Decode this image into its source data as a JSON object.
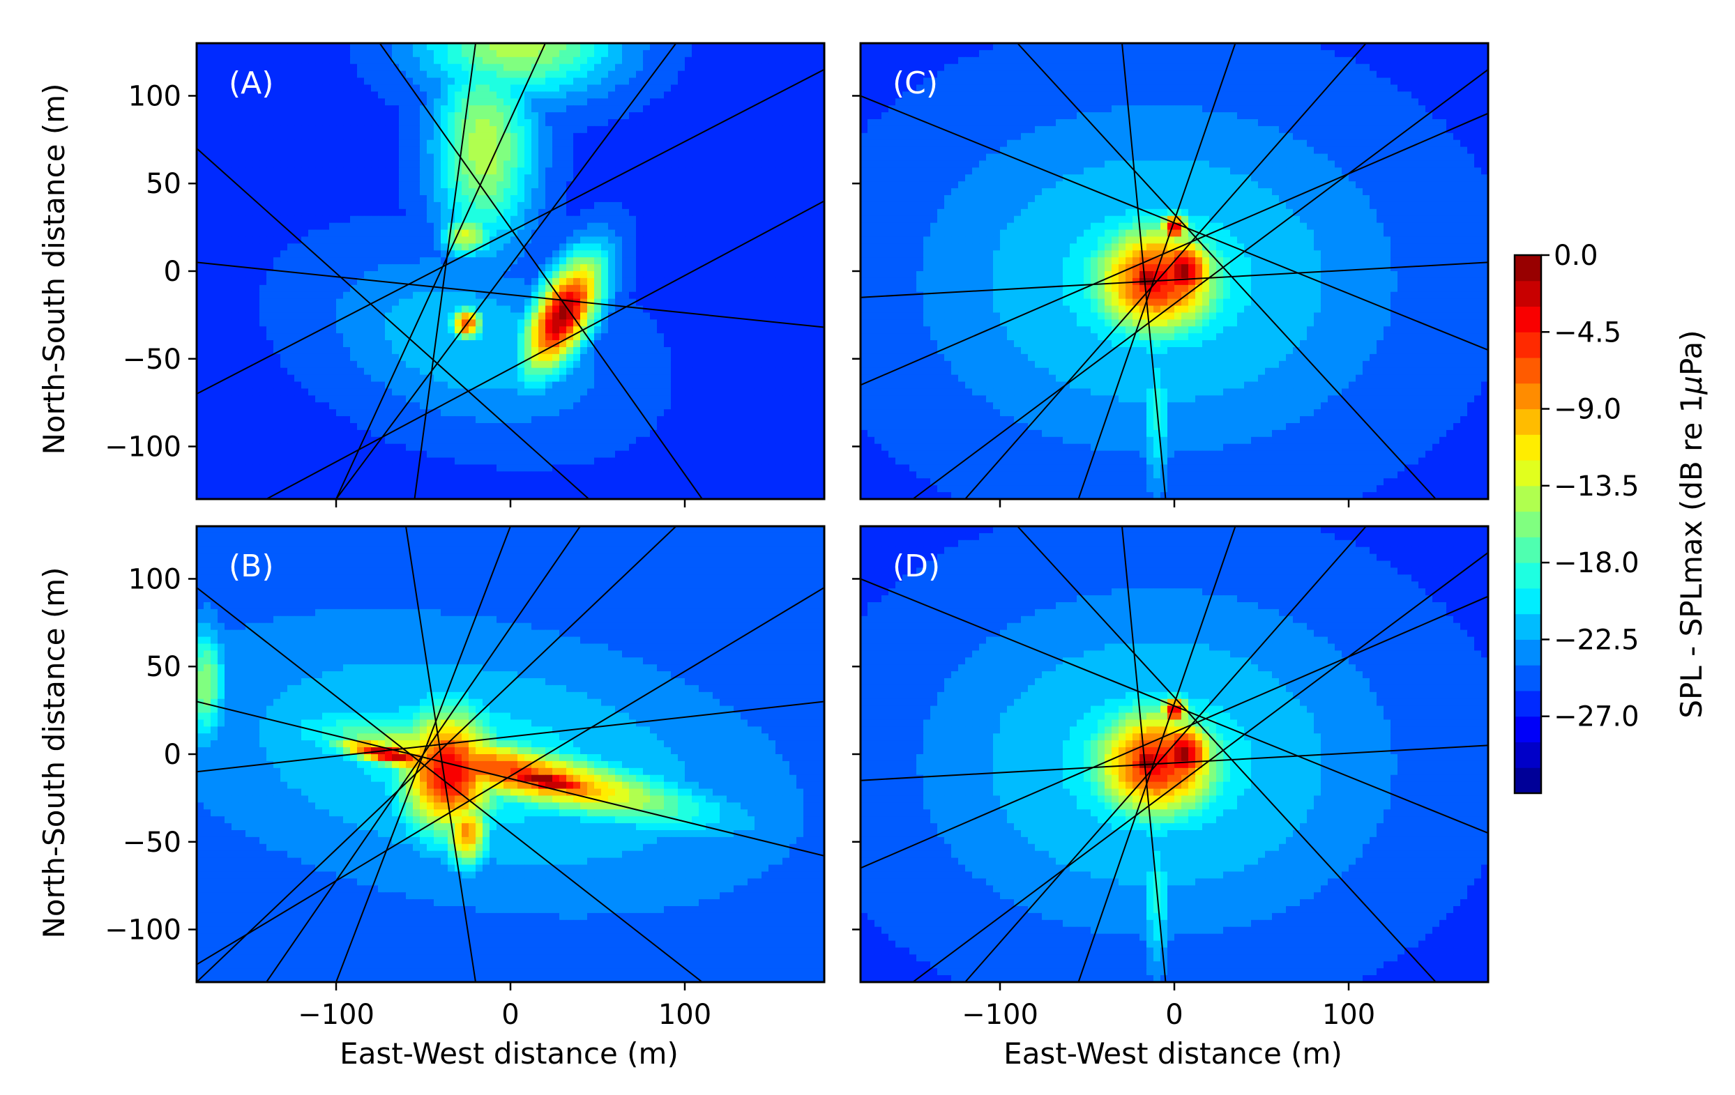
{
  "chart_data": {
    "type": "heatmap",
    "xlabel": "East-West distance (m)",
    "ylabel": "North-South distance (m)",
    "xlim": [
      -180,
      180
    ],
    "ylim": [
      -130,
      130
    ],
    "x_ticks": [
      -100,
      0,
      100
    ],
    "x_tick_labels": [
      "−100",
      "0",
      "100"
    ],
    "y_ticks": [
      100,
      50,
      0,
      -50,
      -100
    ],
    "y_tick_labels": [
      "100",
      "50",
      "0",
      "−50",
      "−100"
    ],
    "colorbar": {
      "label": "SPL - SPLmax (dB re 1μPa)",
      "min": -31.5,
      "max": 0,
      "levels": 21,
      "ticks": [
        0,
        -4.5,
        -9,
        -13.5,
        -18,
        -22.5,
        -27
      ],
      "tick_labels": [
        "0.0",
        "−4.5",
        "−9.0",
        "−13.5",
        "−18.0",
        "−22.5",
        "−27.0"
      ],
      "colormap": "jet"
    },
    "panels": [
      {
        "label": "(A)",
        "background_db": -26,
        "sources": [
          {
            "x": 5,
            "y": 130,
            "sx": 55,
            "sy": 30,
            "ang": 0,
            "db": -14
          },
          {
            "x": -15,
            "y": 70,
            "sx": 28,
            "sy": 55,
            "ang": 0,
            "db": -14
          },
          {
            "x": -25,
            "y": 20,
            "sx": 14,
            "sy": 12,
            "ang": 0,
            "db": -13
          },
          {
            "x": 30,
            "y": -25,
            "sx": 16,
            "sy": 36,
            "ang": -28,
            "db": -1
          },
          {
            "x": -25,
            "y": -30,
            "sx": 9,
            "sy": 9,
            "ang": 0,
            "db": -6
          },
          {
            "x": -25,
            "y": -40,
            "sx": 80,
            "sy": 45,
            "ang": -15,
            "db": -21
          }
        ],
        "tracks": [
          {
            "x0": -180,
            "y0": 5,
            "x1": 180,
            "y1": -32
          },
          {
            "x0": -180,
            "y0": -70,
            "x1": 180,
            "y1": 115
          },
          {
            "x0": -140,
            "y0": -130,
            "x1": 180,
            "y1": 40
          },
          {
            "x0": -180,
            "y0": 70,
            "x1": 45,
            "y1": -130
          },
          {
            "x0": -75,
            "y0": 130,
            "x1": 110,
            "y1": -130
          },
          {
            "x0": -20,
            "y0": 130,
            "x1": -55,
            "y1": -130
          },
          {
            "x0": 95,
            "y0": 130,
            "x1": -100,
            "y1": -130
          },
          {
            "x0": -100,
            "y0": -130,
            "x1": 20,
            "y1": 130
          }
        ]
      },
      {
        "label": "(B)",
        "background_db": -25,
        "sources": [
          {
            "x": -20,
            "y": -5,
            "sx": 150,
            "sy": 65,
            "ang": -10,
            "db": -20
          },
          {
            "x": 0,
            "y": -10,
            "sx": 100,
            "sy": 16,
            "ang": -12,
            "db": -6
          },
          {
            "x": -35,
            "y": -10,
            "sx": 28,
            "sy": 35,
            "ang": 0,
            "db": -3
          },
          {
            "x": 20,
            "y": -15,
            "sx": 40,
            "sy": 7,
            "ang": -12,
            "db": 0
          },
          {
            "x": -70,
            "y": 0,
            "sx": 30,
            "sy": 6,
            "ang": -12,
            "db": -1
          },
          {
            "x": -25,
            "y": -45,
            "sx": 12,
            "sy": 18,
            "ang": 0,
            "db": -8
          },
          {
            "x": -175,
            "y": 40,
            "sx": 10,
            "sy": 30,
            "ang": 0,
            "db": -15
          }
        ],
        "tracks": [
          {
            "x0": -180,
            "y0": -10,
            "x1": 180,
            "y1": 30
          },
          {
            "x0": -180,
            "y0": 30,
            "x1": 180,
            "y1": -58
          },
          {
            "x0": -180,
            "y0": 95,
            "x1": 110,
            "y1": -130
          },
          {
            "x0": -180,
            "y0": -120,
            "x1": 180,
            "y1": 95
          },
          {
            "x0": -60,
            "y0": 130,
            "x1": -20,
            "y1": -130
          },
          {
            "x0": 0,
            "y0": 130,
            "x1": -100,
            "y1": -130
          },
          {
            "x0": 95,
            "y0": 130,
            "x1": -180,
            "y1": -130
          },
          {
            "x0": -140,
            "y0": -130,
            "x1": 40,
            "y1": 130
          }
        ]
      },
      {
        "label": "(C)",
        "background_db": -26,
        "sources": [
          {
            "x": -10,
            "y": -5,
            "sx": 130,
            "sy": 95,
            "ang": 0,
            "db": -20
          },
          {
            "x": -10,
            "y": -5,
            "sx": 38,
            "sy": 33,
            "ang": 0,
            "db": -4
          },
          {
            "x": 5,
            "y": 0,
            "sx": 18,
            "sy": 20,
            "ang": 0,
            "db": -1
          },
          {
            "x": -15,
            "y": -5,
            "sx": 14,
            "sy": 12,
            "ang": 0,
            "db": 0
          },
          {
            "x": 0,
            "y": 25,
            "sx": 8,
            "sy": 8,
            "ang": 0,
            "db": -2
          },
          {
            "x": -10,
            "y": -80,
            "sx": 8,
            "sy": 45,
            "ang": 0,
            "db": -19
          }
        ],
        "tracks": [
          {
            "x0": -180,
            "y0": -15,
            "x1": 180,
            "y1": 5
          },
          {
            "x0": -180,
            "y0": 100,
            "x1": 180,
            "y1": -45
          },
          {
            "x0": -180,
            "y0": -65,
            "x1": 180,
            "y1": 90
          },
          {
            "x0": -90,
            "y0": 130,
            "x1": 150,
            "y1": -130
          },
          {
            "x0": -55,
            "y0": -130,
            "x1": 35,
            "y1": 130
          },
          {
            "x0": -30,
            "y0": 130,
            "x1": -5,
            "y1": -130
          },
          {
            "x0": 110,
            "y0": 130,
            "x1": -120,
            "y1": -130
          },
          {
            "x0": -150,
            "y0": -130,
            "x1": 180,
            "y1": 115
          }
        ]
      },
      {
        "label": "(D)",
        "background_db": -26,
        "sources": [
          {
            "x": -10,
            "y": -5,
            "sx": 130,
            "sy": 95,
            "ang": 0,
            "db": -20
          },
          {
            "x": -10,
            "y": -5,
            "sx": 38,
            "sy": 33,
            "ang": 0,
            "db": -4
          },
          {
            "x": 5,
            "y": 0,
            "sx": 18,
            "sy": 20,
            "ang": 0,
            "db": -1
          },
          {
            "x": -15,
            "y": -5,
            "sx": 14,
            "sy": 12,
            "ang": 0,
            "db": 0
          },
          {
            "x": 0,
            "y": 25,
            "sx": 8,
            "sy": 8,
            "ang": 0,
            "db": -2
          },
          {
            "x": -10,
            "y": -80,
            "sx": 8,
            "sy": 45,
            "ang": 0,
            "db": -19
          }
        ],
        "tracks": [
          {
            "x0": -180,
            "y0": -15,
            "x1": 180,
            "y1": 5
          },
          {
            "x0": -180,
            "y0": 100,
            "x1": 180,
            "y1": -45
          },
          {
            "x0": -180,
            "y0": -65,
            "x1": 180,
            "y1": 90
          },
          {
            "x0": -90,
            "y0": 130,
            "x1": 150,
            "y1": -130
          },
          {
            "x0": -55,
            "y0": -130,
            "x1": 35,
            "y1": 130
          },
          {
            "x0": -30,
            "y0": 130,
            "x1": -5,
            "y1": -130
          },
          {
            "x0": 110,
            "y0": 130,
            "x1": -120,
            "y1": -130
          },
          {
            "x0": -150,
            "y0": -130,
            "x1": 180,
            "y1": 115
          }
        ]
      }
    ]
  }
}
